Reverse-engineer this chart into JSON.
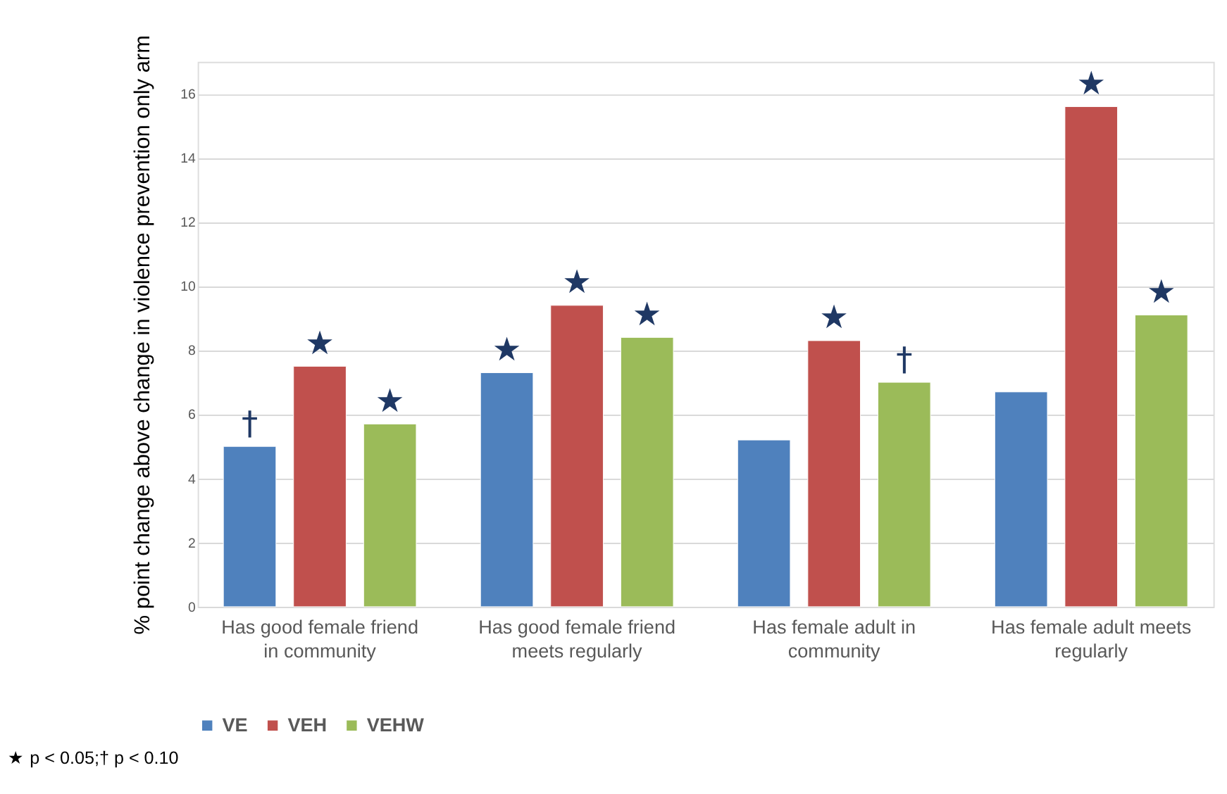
{
  "chart_data": {
    "type": "bar",
    "ylabel": "% point change above change in violence prevention only arm",
    "categories": [
      "Has good female friend in community",
      "Has good female friend meets regularly",
      "Has female adult in community",
      "Has female adult meets regularly"
    ],
    "series": [
      {
        "name": "VE",
        "color": "#4f81bd",
        "values": [
          5.0,
          7.3,
          5.2,
          6.7
        ],
        "value_labels": [
          "†",
          "★",
          null,
          null
        ]
      },
      {
        "name": "VEH",
        "color": "#c0504d",
        "values": [
          7.5,
          9.4,
          8.3,
          15.6
        ],
        "value_labels": [
          "★",
          "★",
          "★",
          "★"
        ]
      },
      {
        "name": "VEHW",
        "color": "#9bbb59",
        "values": [
          5.7,
          8.4,
          7.0,
          9.1
        ],
        "value_labels": [
          "★",
          "★",
          "†",
          "★"
        ]
      }
    ],
    "ylim": [
      0,
      17
    ],
    "yticks": [
      0,
      2,
      4,
      6,
      8,
      10,
      12,
      14,
      16
    ],
    "grid": "y",
    "legend": "bottom",
    "annotations": [
      "★ p < 0.05;† p < 0.10"
    ]
  }
}
